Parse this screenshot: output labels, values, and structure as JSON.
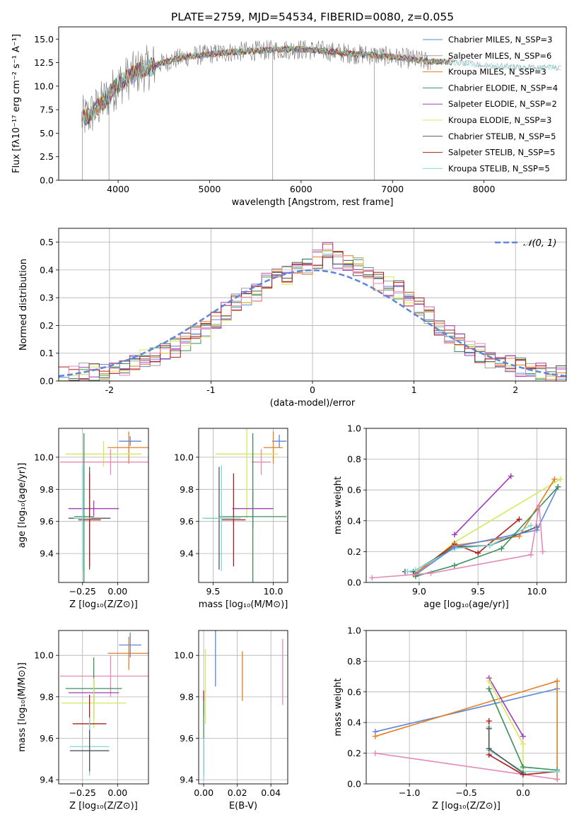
{
  "title": "PLATE=2759, MJD=54534, FIBERID=0080, z=0.055",
  "colors": {
    "chabrier_miles": "#5b86d9",
    "salpeter_miles": "#a0a0a0",
    "kroupa_miles": "#e67e22",
    "chabrier_elodie": "#3b8f5a",
    "salpeter_elodie": "#a33ab8",
    "kroupa_elodie": "#d4e85a",
    "chabrier_stelib": "#555555",
    "salpeter_stelib": "#b01c1c",
    "kroupa_stelib": "#7fd9d9",
    "pink": "#e58ab8",
    "gauss": "#5b86d9",
    "grid": "#b0b0b0"
  },
  "chart_data": [
    {
      "id": "spectrum",
      "type": "line",
      "xlabel": "wavelength [Angstrom, rest frame]",
      "ylabel": "Flux [fλ10⁻¹⁷ erg cm⁻² s⁻¹ A⁻¹]",
      "xlim": [
        3350,
        8900
      ],
      "ylim": [
        0,
        16.3
      ],
      "xticks": [
        4000,
        5000,
        6000,
        7000,
        8000
      ],
      "yticks": [
        0.0,
        2.5,
        5.0,
        7.5,
        10.0,
        12.5,
        15.0
      ],
      "grid": false,
      "legend_position": "upper-right",
      "continuum": {
        "x": [
          3600,
          3700,
          3850,
          4000,
          4200,
          4400,
          4600,
          4800,
          5000,
          5200,
          5400,
          5600,
          5800,
          6000,
          6200,
          6400,
          6600,
          6800,
          7000,
          7200,
          7400,
          7600,
          7800,
          8000,
          8200,
          8400,
          8600,
          8800
        ],
        "y": [
          6.5,
          7.0,
          8.5,
          10.2,
          11.5,
          12.2,
          12.8,
          13.2,
          13.4,
          13.6,
          13.7,
          13.8,
          13.9,
          13.9,
          13.8,
          13.6,
          13.4,
          13.3,
          13.1,
          12.9,
          12.6,
          12.6,
          12.4,
          12.2,
          12.1,
          12.0,
          12.0,
          12.0
        ]
      },
      "series": [
        {
          "name": "Chabrier MILES, N_SSP=3",
          "color_key": "chabrier_miles"
        },
        {
          "name": "Salpeter MILES, N_SSP=6",
          "color_key": "salpeter_miles"
        },
        {
          "name": "Kroupa MILES, N_SSP=3",
          "color_key": "kroupa_miles"
        },
        {
          "name": "Chabrier ELODIE, N_SSP=4",
          "color_key": "chabrier_elodie"
        },
        {
          "name": "Salpeter ELODIE, N_SSP=2",
          "color_key": "salpeter_elodie"
        },
        {
          "name": "Kroupa ELODIE, N_SSP=3",
          "color_key": "kroupa_elodie"
        },
        {
          "name": "Chabrier STELIB, N_SSP=5",
          "color_key": "chabrier_stelib"
        },
        {
          "name": "Salpeter STELIB, N_SSP=5",
          "color_key": "salpeter_stelib"
        },
        {
          "name": "Kroupa STELIB, N_SSP=5",
          "color_key": "kroupa_stelib"
        }
      ]
    },
    {
      "id": "residuals",
      "type": "line",
      "xlabel": "(data-model)/error",
      "ylabel": "Normed distribution",
      "xlim": [
        -2.5,
        2.5
      ],
      "ylim": [
        0,
        0.55
      ],
      "xticks": [
        -2,
        -1,
        0,
        1,
        2
      ],
      "yticks": [
        0.0,
        0.1,
        0.2,
        0.3,
        0.4,
        0.5
      ],
      "grid": true,
      "legend_position": "upper-right",
      "gauss_label": "𝒩(0, 1)",
      "bin_edges": [
        -2.5,
        -2.4,
        -2.3,
        -2.2,
        -2.1,
        -2.0,
        -1.9,
        -1.8,
        -1.7,
        -1.6,
        -1.5,
        -1.4,
        -1.3,
        -1.2,
        -1.1,
        -1.0,
        -0.9,
        -0.8,
        -0.7,
        -0.6,
        -0.5,
        -0.4,
        -0.3,
        -0.2,
        -0.1,
        0.0,
        0.1,
        0.2,
        0.3,
        0.4,
        0.5,
        0.6,
        0.7,
        0.8,
        0.9,
        1.0,
        1.1,
        1.2,
        1.3,
        1.4,
        1.5,
        1.6,
        1.7,
        1.8,
        1.9,
        2.0,
        2.1,
        2.2,
        2.3,
        2.4,
        2.5
      ],
      "base": [
        0.02,
        0.02,
        0.03,
        0.03,
        0.04,
        0.05,
        0.05,
        0.06,
        0.08,
        0.09,
        0.1,
        0.12,
        0.14,
        0.17,
        0.19,
        0.22,
        0.25,
        0.28,
        0.3,
        0.32,
        0.36,
        0.37,
        0.38,
        0.4,
        0.41,
        0.44,
        0.47,
        0.44,
        0.42,
        0.41,
        0.38,
        0.36,
        0.34,
        0.33,
        0.3,
        0.27,
        0.24,
        0.2,
        0.17,
        0.14,
        0.12,
        0.1,
        0.08,
        0.07,
        0.06,
        0.05,
        0.04,
        0.03,
        0.02,
        0.02
      ],
      "series": [
        {
          "color_key": "chabrier_miles"
        },
        {
          "color_key": "salpeter_miles"
        },
        {
          "color_key": "kroupa_miles"
        },
        {
          "color_key": "chabrier_elodie"
        },
        {
          "color_key": "salpeter_elodie"
        },
        {
          "color_key": "kroupa_elodie"
        },
        {
          "color_key": "chabrier_stelib"
        },
        {
          "color_key": "salpeter_stelib"
        },
        {
          "color_key": "pink"
        }
      ]
    },
    {
      "id": "z_age",
      "type": "scatter",
      "xlabel": "Z [log₁₀(Z/Z⊙)]",
      "ylabel": "age  [log₁₀(age/yr)]",
      "xlim": [
        -0.42,
        0.22
      ],
      "ylim": [
        9.22,
        10.18
      ],
      "xticks": [
        -0.25,
        0.0
      ],
      "xtick_labels": [
        "−0.25",
        "0.00"
      ],
      "yticks": [
        9.4,
        9.6,
        9.8,
        10.0
      ],
      "grid": true,
      "points": [
        {
          "c": "chabrier_miles",
          "x": 0.09,
          "y": 10.1,
          "xe": 0.08,
          "ye": 0.03
        },
        {
          "c": "kroupa_miles",
          "x": 0.08,
          "y": 10.06,
          "xe": 0.15,
          "ye": 0.1
        },
        {
          "c": "kroupa_elodie",
          "x": -0.1,
          "y": 10.02,
          "xe": 0.27,
          "ye": 0.08
        },
        {
          "c": "pink",
          "x": -0.05,
          "y": 9.97,
          "xe": 0.36,
          "ye": 0.08
        },
        {
          "c": "salpeter_elodie",
          "x": -0.17,
          "y": 9.68,
          "xe": 0.18,
          "ye": 0.05
        },
        {
          "c": "chabrier_stelib",
          "x": -0.2,
          "y": 9.62,
          "xe": 0.15,
          "ye": 0.32
        },
        {
          "c": "chabrier_elodie",
          "x": -0.24,
          "y": 9.63,
          "xe": 0.07,
          "ye": 0.52
        },
        {
          "c": "salpeter_stelib",
          "x": -0.2,
          "y": 9.61,
          "xe": 0.08,
          "ye": 0.29
        },
        {
          "c": "kroupa_stelib",
          "x": -0.25,
          "y": 9.62,
          "xe": 0.06,
          "ye": 0.33
        }
      ]
    },
    {
      "id": "mass_age",
      "type": "scatter",
      "xlabel": "mass [log₁₀(M/M⊙)]",
      "ylabel": "",
      "xlim": [
        9.38,
        10.12
      ],
      "ylim": [
        9.22,
        10.18
      ],
      "xticks": [
        9.5,
        10.0
      ],
      "xtick_labels": [
        "9.5",
        "10.0"
      ],
      "yticks": [
        9.4,
        9.6,
        9.8,
        10.0
      ],
      "grid": true,
      "points": [
        {
          "c": "chabrier_miles",
          "x": 10.05,
          "y": 10.1,
          "xe": 0.06,
          "ye": 0.04
        },
        {
          "c": "kroupa_miles",
          "x": 10.0,
          "y": 10.06,
          "xe": 0.08,
          "ye": 0.1
        },
        {
          "c": "kroupa_elodie",
          "x": 9.78,
          "y": 10.02,
          "xe": 0.26,
          "ye": 0.4
        },
        {
          "c": "pink",
          "x": 9.9,
          "y": 9.97,
          "xe": 0.08,
          "ye": 0.08
        },
        {
          "c": "salpeter_elodie",
          "x": 9.83,
          "y": 9.68,
          "xe": 0.17,
          "ye": 0.12
        },
        {
          "c": "chabrier_stelib",
          "x": 9.55,
          "y": 9.62,
          "xe": 0.12,
          "ye": 0.32
        },
        {
          "c": "chabrier_elodie",
          "x": 9.83,
          "y": 9.63,
          "xe": 0.28,
          "ye": 0.52
        },
        {
          "c": "salpeter_stelib",
          "x": 9.67,
          "y": 9.61,
          "xe": 0.1,
          "ye": 0.29
        },
        {
          "c": "kroupa_stelib",
          "x": 9.57,
          "y": 9.62,
          "xe": 0.16,
          "ye": 0.33
        }
      ]
    },
    {
      "id": "age_weight",
      "type": "line",
      "xlabel": "age  [log₁₀(age/yr)]",
      "ylabel": "mass weight",
      "xlim": [
        8.55,
        10.25
      ],
      "ylim": [
        0,
        1
      ],
      "xticks": [
        9.0,
        9.5,
        10.0
      ],
      "xtick_labels": [
        "9.0",
        "9.5",
        "10.0"
      ],
      "yticks": [
        0.0,
        0.2,
        0.4,
        0.6,
        0.8,
        1.0
      ],
      "grid": true,
      "series": [
        {
          "c": "salpeter_elodie",
          "x": [
            9.3,
            9.78
          ],
          "y": [
            0.31,
            0.69
          ]
        },
        {
          "c": "kroupa_elodie",
          "x": [
            8.97,
            9.3,
            10.2
          ],
          "y": [
            0.05,
            0.26,
            0.67
          ]
        },
        {
          "c": "salpeter_stelib",
          "x": [
            8.97,
            9.3,
            9.5,
            9.85
          ],
          "y": [
            0.06,
            0.25,
            0.19,
            0.41
          ]
        },
        {
          "c": "kroupa_miles",
          "x": [
            8.95,
            9.3,
            9.85,
            10.15
          ],
          "y": [
            0.05,
            0.24,
            0.3,
            0.67
          ]
        },
        {
          "c": "chabrier_stelib",
          "x": [
            8.88,
            8.95,
            9.3,
            9.6,
            10.0
          ],
          "y": [
            0.07,
            0.07,
            0.23,
            0.24,
            0.36
          ]
        },
        {
          "c": "kroupa_stelib",
          "x": [
            8.9,
            8.97,
            9.3,
            9.6,
            9.95
          ],
          "y": [
            0.07,
            0.08,
            0.22,
            0.24,
            0.37
          ]
        },
        {
          "c": "chabrier_miles",
          "x": [
            8.97,
            9.3,
            10.0,
            10.18
          ],
          "y": [
            0.05,
            0.23,
            0.34,
            0.62
          ]
        },
        {
          "c": "chabrier_elodie",
          "x": [
            8.97,
            9.3,
            9.7,
            10.18
          ],
          "y": [
            0.04,
            0.11,
            0.22,
            0.62
          ]
        },
        {
          "c": "pink",
          "x": [
            8.6,
            9.1,
            9.95,
            10.02,
            10.05
          ],
          "y": [
            0.03,
            0.06,
            0.18,
            0.5,
            0.2
          ]
        }
      ]
    },
    {
      "id": "z_mass",
      "type": "scatter",
      "xlabel": "Z [log₁₀(Z/Z⊙)]",
      "ylabel": "mass [log₁₀(M/M⊙)]",
      "xlim": [
        -0.42,
        0.22
      ],
      "ylim": [
        9.38,
        10.12
      ],
      "xticks": [
        -0.25,
        0.0
      ],
      "xtick_labels": [
        "−0.25",
        "0.00"
      ],
      "yticks": [
        9.4,
        9.6,
        9.8,
        10.0
      ],
      "grid": true,
      "points": [
        {
          "c": "chabrier_miles",
          "x": 0.09,
          "y": 10.05,
          "xe": 0.08,
          "ye": 0.06
        },
        {
          "c": "kroupa_miles",
          "x": 0.08,
          "y": 10.01,
          "xe": 0.15,
          "ye": 0.08
        },
        {
          "c": "pink",
          "x": -0.05,
          "y": 9.9,
          "xe": 0.36,
          "ye": 0.1
        },
        {
          "c": "chabrier_elodie",
          "x": -0.17,
          "y": 9.84,
          "xe": 0.2,
          "ye": 0.15
        },
        {
          "c": "salpeter_elodie",
          "x": -0.17,
          "y": 9.82,
          "xe": 0.18,
          "ye": 0.06
        },
        {
          "c": "kroupa_elodie",
          "x": -0.17,
          "y": 9.77,
          "xe": 0.23,
          "ye": 0.12
        },
        {
          "c": "salpeter_stelib",
          "x": -0.2,
          "y": 9.67,
          "xe": 0.12,
          "ye": 0.14
        },
        {
          "c": "kroupa_stelib",
          "x": -0.2,
          "y": 9.56,
          "xe": 0.14,
          "ye": 0.14
        },
        {
          "c": "chabrier_stelib",
          "x": -0.2,
          "y": 9.54,
          "xe": 0.14,
          "ye": 0.1
        }
      ]
    },
    {
      "id": "ebv",
      "type": "scatter",
      "xlabel": "E(B-V)",
      "ylabel": "",
      "xlim": [
        -0.003,
        0.05
      ],
      "ylim": [
        9.38,
        10.12
      ],
      "xticks": [
        0.0,
        0.02,
        0.04
      ],
      "xtick_labels": [
        "0.00",
        "0.02",
        "0.04"
      ],
      "yticks": [
        9.4,
        9.6,
        9.8,
        10.0
      ],
      "grid": true,
      "points": [
        {
          "c": "chabrier_miles",
          "x": 0.007,
          "y": 9.99,
          "ye": 0.14
        },
        {
          "c": "kroupa_miles",
          "x": 0.023,
          "y": 9.9,
          "ye": 0.12
        },
        {
          "c": "pink",
          "x": 0.047,
          "y": 9.92,
          "ye": 0.16
        },
        {
          "c": "kroupa_elodie",
          "x": 0.001,
          "y": 9.85,
          "ye": 0.18
        },
        {
          "c": "salpeter_stelib",
          "x": 0.0,
          "y": 9.77,
          "ye": 0.06
        },
        {
          "c": "chabrier_elodie",
          "x": 0.0,
          "y": 9.6,
          "ye": 0.18
        },
        {
          "c": "kroupa_stelib",
          "x": 0.0,
          "y": 9.5,
          "ye": 0.1
        }
      ]
    },
    {
      "id": "z_weight",
      "type": "line",
      "xlabel": "Z [log₁₀(Z/Z⊙)]",
      "ylabel": "mass weight",
      "xlim": [
        -1.38,
        0.38
      ],
      "ylim": [
        0,
        1
      ],
      "xticks": [
        -1.0,
        -0.5,
        0.0
      ],
      "xtick_labels": [
        "−1.0",
        "−0.5",
        "0.0"
      ],
      "yticks": [
        0.0,
        0.2,
        0.4,
        0.6,
        0.8,
        1.0
      ],
      "grid": true,
      "series": [
        {
          "c": "chabrier_miles",
          "x": [
            -1.3,
            0.3
          ],
          "y": [
            0.34,
            0.62
          ]
        },
        {
          "c": "kroupa_miles",
          "x": [
            -1.3,
            0.3,
            0.3
          ],
          "y": [
            0.31,
            0.67,
            0.03
          ]
        },
        {
          "c": "pink",
          "x": [
            -1.3,
            0.3
          ],
          "y": [
            0.2,
            0.03
          ]
        },
        {
          "c": "salpeter_elodie",
          "x": [
            -0.3,
            0.0
          ],
          "y": [
            0.69,
            0.31
          ]
        },
        {
          "c": "kroupa_elodie",
          "x": [
            -0.3,
            0.0,
            0.0
          ],
          "y": [
            0.67,
            0.26,
            0.1
          ]
        },
        {
          "c": "chabrier_elodie",
          "x": [
            -0.3,
            0.0,
            0.3,
            0.3
          ],
          "y": [
            0.62,
            0.11,
            0.09,
            0.08
          ]
        },
        {
          "c": "salpeter_stelib",
          "x": [
            -0.3,
            -0.3,
            0.0,
            0.3
          ],
          "y": [
            0.41,
            0.19,
            0.06,
            0.08
          ]
        },
        {
          "c": "kroupa_stelib",
          "x": [
            -0.3,
            -0.3,
            0.0,
            0.3
          ],
          "y": [
            0.37,
            0.22,
            0.08,
            0.08
          ]
        },
        {
          "c": "chabrier_stelib",
          "x": [
            -0.3,
            -0.3,
            0.0
          ],
          "y": [
            0.36,
            0.23,
            0.07
          ]
        }
      ]
    }
  ]
}
